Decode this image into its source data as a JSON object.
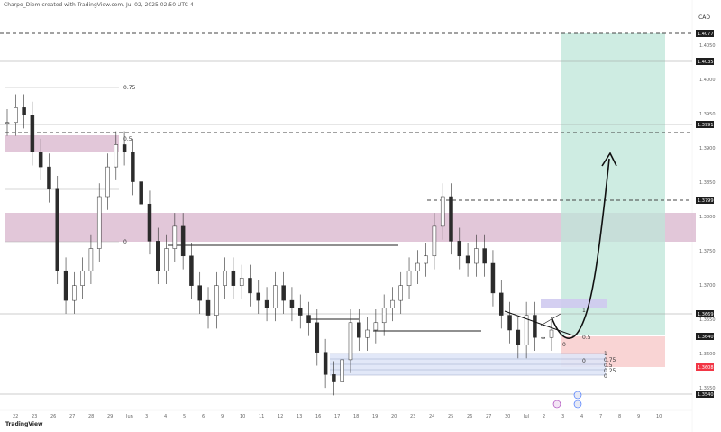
{
  "header": {
    "caption": "Charpo_Diem created with TradingView.com, Jul 02, 2025 02:50 UTC-4",
    "currency": "CAD",
    "brand": "TradingView"
  },
  "colors": {
    "candle": "#2b2b2b",
    "supply_zone": "#d8b4cc",
    "target_zone": "#bde5d8",
    "stop_zone": "#f8cccc",
    "fvg_zone": "#dfe6f7",
    "purple_zone": "#cfcaf0",
    "price_tag": "#1e1e1e",
    "current_tag": "#f23645"
  },
  "fib_left": {
    "level_075": "0.75",
    "level_05": "0.5",
    "level_0": "0"
  },
  "fib_right": {
    "level_1": "1",
    "level_075": "0.75",
    "level_05": "0.5",
    "level_025": "0.25",
    "level_0": "0"
  },
  "small_levels": {
    "one": "1",
    "half": "0.5",
    "zero": "0"
  },
  "price_tags": [
    "1.4077",
    "1.4035",
    "1.3991",
    "1.3799",
    "1.3669",
    "1.3640",
    "1.3608",
    "1.3540"
  ],
  "time_axis": [
    "22",
    "23",
    "26",
    "27",
    "28",
    "29",
    "Jun",
    "3",
    "4",
    "5",
    "6",
    "9",
    "10",
    "11",
    "12",
    "13",
    "16",
    "17",
    "18",
    "19",
    "20",
    "23",
    "24",
    "25",
    "26",
    "27",
    "30",
    "Jul",
    "2",
    "3",
    "4",
    "7",
    "8",
    "9",
    "10"
  ],
  "chart_data": {
    "type": "candlestick",
    "price_axis": [
      "1.4050",
      "1.4000",
      "1.3950",
      "1.3900",
      "1.3850",
      "1.3800",
      "1.3750",
      "1.3700",
      "1.3650",
      "1.3600",
      "1.3550"
    ],
    "closes": [
      1.392,
      1.394,
      1.393,
      1.388,
      1.386,
      1.383,
      1.372,
      1.368,
      1.37,
      1.372,
      1.375,
      1.382,
      1.386,
      1.389,
      1.388,
      1.384,
      1.381,
      1.376,
      1.372,
      1.375,
      1.378,
      1.374,
      1.37,
      1.368,
      1.366,
      1.37,
      1.372,
      1.37,
      1.371,
      1.369,
      1.368,
      1.367,
      1.37,
      1.368,
      1.367,
      1.366,
      1.365,
      1.361,
      1.358,
      1.357,
      1.36,
      1.365,
      1.363,
      1.364,
      1.365,
      1.367,
      1.368,
      1.37,
      1.372,
      1.373,
      1.374,
      1.378,
      1.382,
      1.376,
      1.374,
      1.373,
      1.375,
      1.373,
      1.369,
      1.366,
      1.364,
      1.362,
      1.366,
      1.363,
      1.363,
      1.364
    ]
  }
}
